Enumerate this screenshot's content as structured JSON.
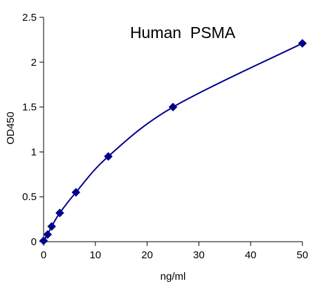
{
  "chart_data": {
    "type": "scatter",
    "title": "Human  PSMA",
    "xlabel": "ng/ml",
    "ylabel": "OD450",
    "xlim": [
      0,
      50
    ],
    "ylim": [
      0,
      2.5
    ],
    "x_ticks": [
      0,
      10,
      20,
      30,
      40,
      50
    ],
    "y_ticks": [
      0,
      0.5,
      1,
      1.5,
      2,
      2.5
    ],
    "x_tick_labels": [
      "0",
      "10",
      "20",
      "30",
      "40",
      "50"
    ],
    "y_tick_labels": [
      "0",
      "0.5",
      "1",
      "1.5",
      "2",
      "2.5"
    ],
    "grid": false,
    "legend": "none",
    "marker": "diamond",
    "line": "smooth",
    "color": "#00008b",
    "series": [
      {
        "x": [
          0,
          0.78,
          1.56,
          3.125,
          6.25,
          12.5,
          25,
          50
        ],
        "y": [
          0.01,
          0.08,
          0.17,
          0.32,
          0.55,
          0.95,
          1.5,
          2.21
        ]
      }
    ]
  }
}
